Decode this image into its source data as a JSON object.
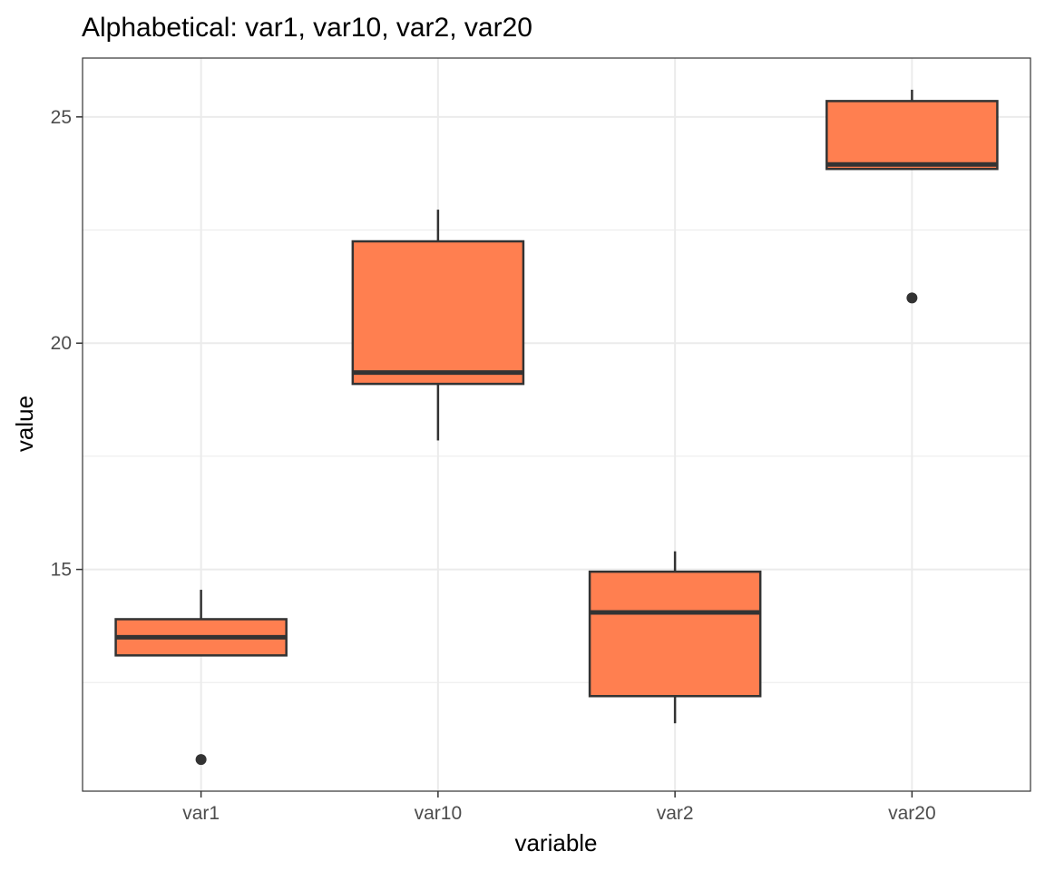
{
  "chart_data": {
    "type": "boxplot",
    "title": "Alphabetical: var1, var10, var2, var20",
    "xlabel": "variable",
    "ylabel": "value",
    "categories": [
      "var1",
      "var10",
      "var2",
      "var20"
    ],
    "ylim": [
      10.1,
      26.3
    ],
    "yticks": [
      15,
      20,
      25
    ],
    "grid": true,
    "fill_color": "#FF7F50",
    "stroke_color": "#333333",
    "boxes": [
      {
        "category": "var1",
        "whisker_low": 13.1,
        "q1": 13.1,
        "median": 13.5,
        "q3": 13.9,
        "whisker_high": 14.55,
        "outliers": [
          10.8
        ]
      },
      {
        "category": "var10",
        "whisker_low": 17.85,
        "q1": 19.1,
        "median": 19.35,
        "q3": 22.25,
        "whisker_high": 22.95,
        "outliers": []
      },
      {
        "category": "var2",
        "whisker_low": 11.6,
        "q1": 12.2,
        "median": 14.05,
        "q3": 14.95,
        "whisker_high": 15.4,
        "outliers": []
      },
      {
        "category": "var20",
        "whisker_low": 23.85,
        "q1": 23.85,
        "median": 23.95,
        "q3": 25.35,
        "whisker_high": 25.6,
        "outliers": [
          21.0
        ]
      }
    ]
  }
}
